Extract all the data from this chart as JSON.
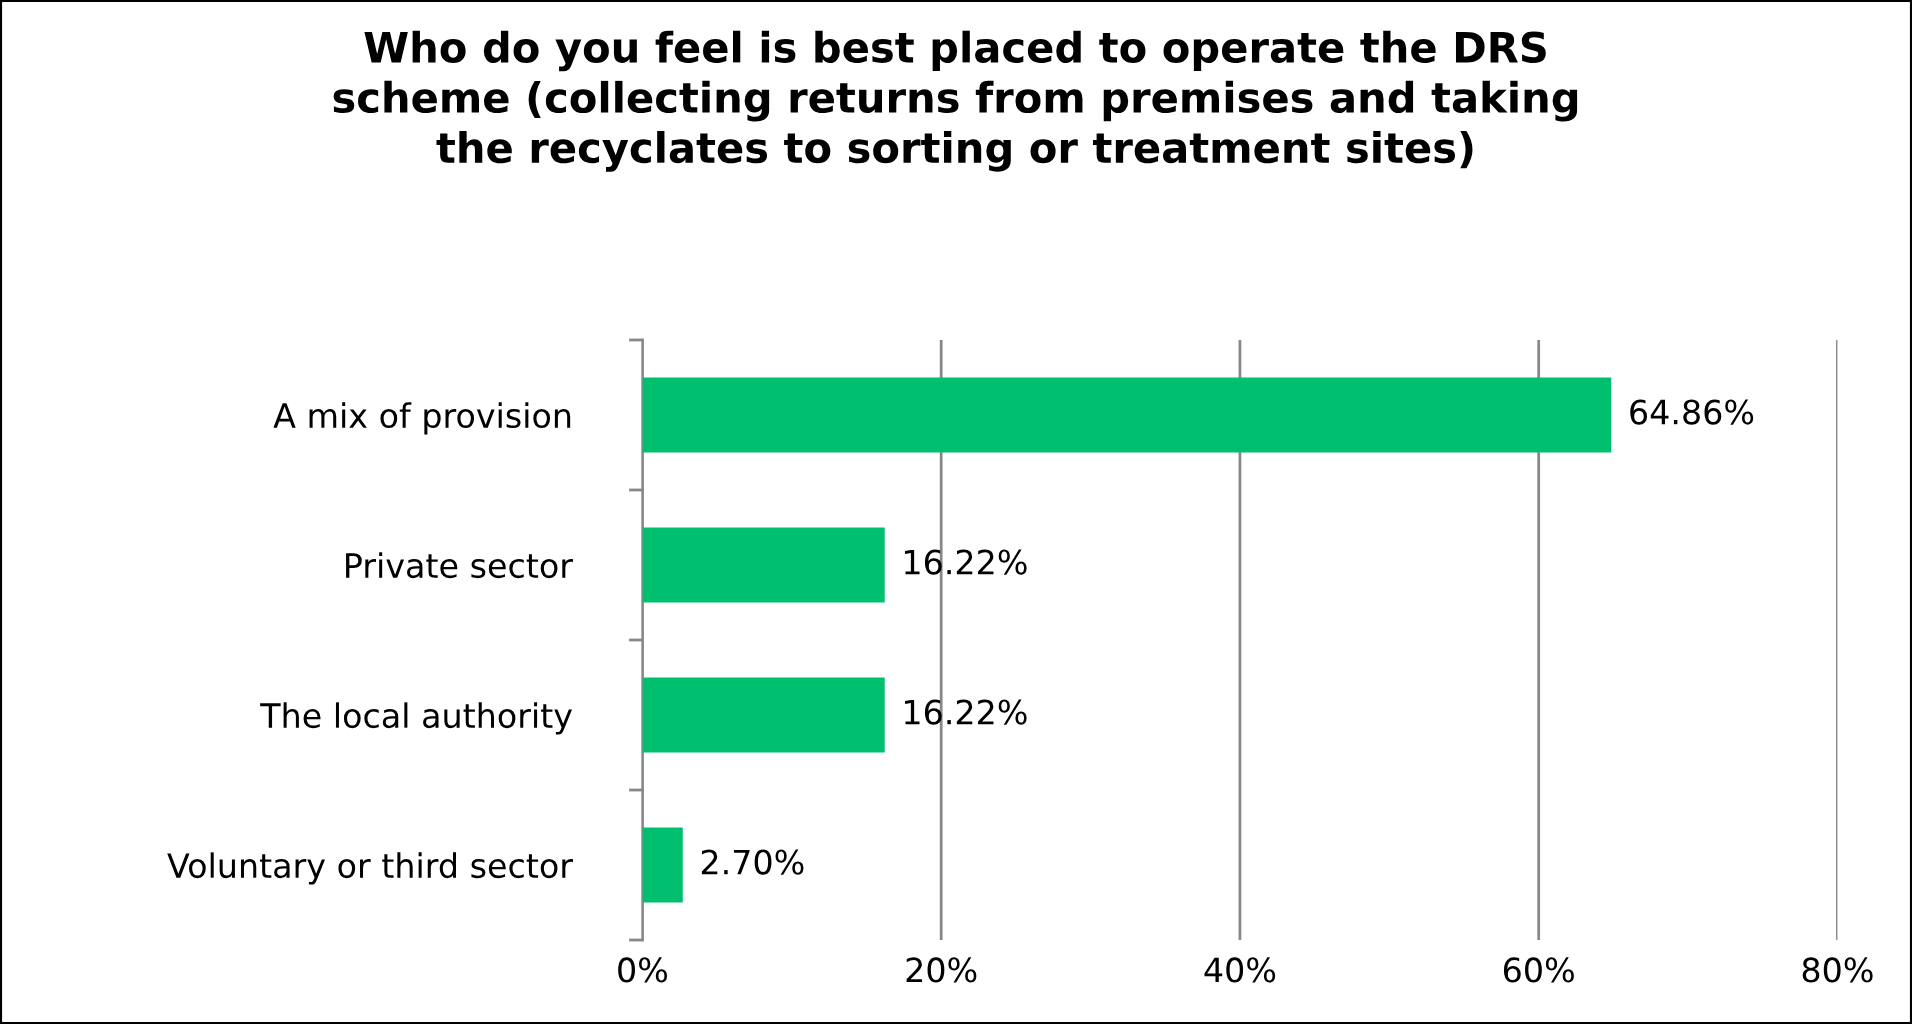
{
  "chart_data": {
    "type": "bar",
    "orientation": "horizontal",
    "title": "Who do you feel is best placed to operate the DRS\nscheme (collecting returns from premises and taking\nthe recyclates to sorting or treatment sites)",
    "categories": [
      "A mix of provision",
      "Private sector",
      "The local authority",
      "Voluntary or third sector"
    ],
    "values": [
      64.86,
      16.22,
      16.22,
      2.7
    ],
    "value_labels": [
      "64.86%",
      "16.22%",
      "16.22%",
      "2.70%"
    ],
    "color": "#00c070",
    "xlim": [
      0,
      80
    ],
    "xticks": [
      {
        "value": 0,
        "label": "0%"
      },
      {
        "value": 20,
        "label": "20%"
      },
      {
        "value": 40,
        "label": "40%"
      },
      {
        "value": 60,
        "label": "60%"
      },
      {
        "value": 80,
        "label": "80%"
      }
    ],
    "grid": "x",
    "legend": false
  }
}
